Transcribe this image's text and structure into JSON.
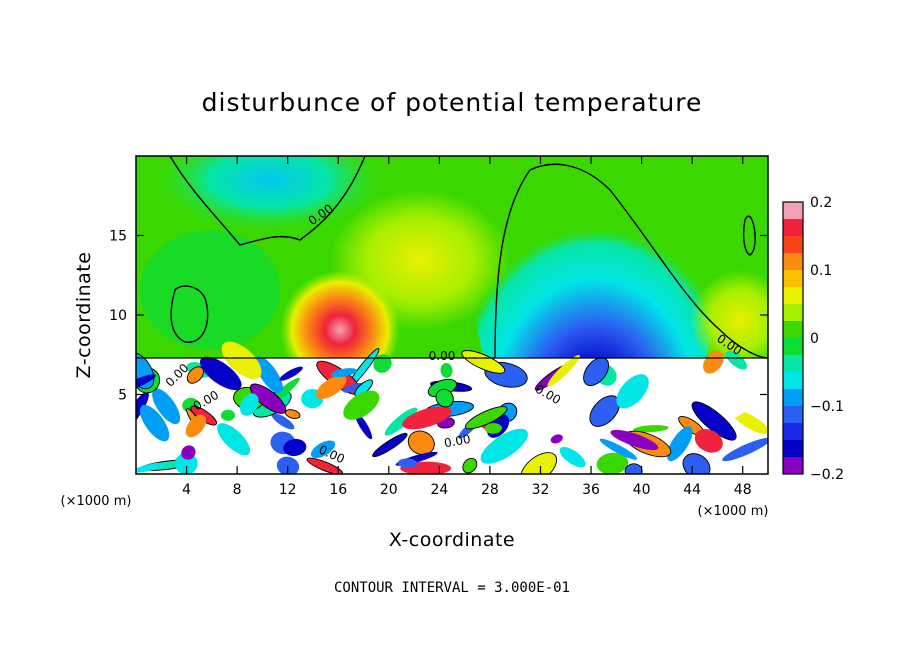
{
  "chart_data": {
    "type": "heatmap",
    "title": "disturbunce of potential temperature",
    "xlabel": "X-coordinate",
    "ylabel": "Z-coordinate",
    "x_unit_label": "(×1000 m)",
    "xlim": [
      0,
      50
    ],
    "ylim": [
      0,
      20
    ],
    "x_ticks": [
      4,
      8,
      12,
      16,
      20,
      24,
      28,
      32,
      36,
      40,
      44,
      48
    ],
    "x_tick_labels": [
      "4",
      "8",
      "12",
      "16",
      "20",
      "24",
      "28",
      "32",
      "36",
      "40",
      "44",
      "48"
    ],
    "y_ticks": [
      5,
      10,
      15
    ],
    "y_tick_labels": [
      "5",
      "10",
      "15"
    ],
    "colorbar": {
      "range": [
        -0.2,
        0.2
      ],
      "tick_values": [
        0.2,
        0.1,
        0,
        -0.1,
        -0.2
      ],
      "tick_labels": [
        "0.2",
        "0.1",
        "0",
        "−0.1",
        "−0.2"
      ],
      "colors": [
        "#f4a0b4",
        "#f0223c",
        "#f84418",
        "#fb8a10",
        "#fbc000",
        "#e9f000",
        "#a6ef00",
        "#3ad800",
        "#0cdc34",
        "#06e6a6",
        "#00e6e6",
        "#009ef6",
        "#2b60f2",
        "#1b2ae6",
        "#0400c8",
        "#8a00c0"
      ]
    },
    "contour_labels": [
      "0.00",
      "0.00",
      "0.00",
      "0.00",
      "0.00",
      "0.00",
      "0.00",
      "0.00"
    ],
    "footer": "CONTOUR INTERVAL = 3.000E-01"
  },
  "colors": {
    "background": "#ffffff",
    "foreground": "#000000"
  }
}
